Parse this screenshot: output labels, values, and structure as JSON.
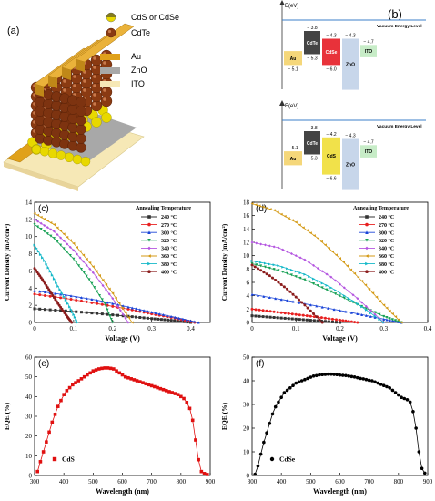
{
  "panel_a": {
    "label": "(a)",
    "legend": [
      "CdS or CdSe",
      "CdTe",
      "Au",
      "ZnO",
      "ITO"
    ],
    "colors": {
      "cds": "#e8d800",
      "cdte": "#8a3a12",
      "au": "#e0a11a",
      "zno": "#a8a8a8",
      "ito": "#f6e8b6"
    }
  },
  "panel_b": {
    "label": "(b)",
    "top": {
      "axis": "E(eV)",
      "vacuum": "Vacuum Energy Level",
      "bars": [
        {
          "name": "Au",
          "top": "",
          "bottom": "− 5.1",
          "color": "#f5d77a"
        },
        {
          "name": "CdTe",
          "top": "− 3.8",
          "bottom": "− 5.3",
          "color": "#444444"
        },
        {
          "name": "CdSe",
          "top": "− 4.3",
          "bottom": "− 6.0",
          "color": "#e8323a"
        },
        {
          "name": "ZnO",
          "top": "− 4.3",
          "bottom": "",
          "color": "#c7d6ea"
        },
        {
          "name": "ITO",
          "top": "− 4.7",
          "bottom": "",
          "color": "#c7ecc7"
        }
      ]
    },
    "bottom": {
      "axis": "E(eV)",
      "vacuum": "Vacuum Energy Level",
      "bars": [
        {
          "name": "Au",
          "top": "− 5.1",
          "bottom": "",
          "color": "#f5d77a"
        },
        {
          "name": "CdTe",
          "top": "− 3.8",
          "bottom": "− 5.3",
          "color": "#444444"
        },
        {
          "name": "CdS",
          "top": "− 4.2",
          "bottom": "− 6.6",
          "color": "#f1e14a"
        },
        {
          "name": "ZnO",
          "top": "− 4.3",
          "bottom": "− 7.6",
          "color": "#c7d6ea"
        },
        {
          "name": "ITO",
          "top": "− 4.7",
          "bottom": "",
          "color": "#c7ecc7"
        }
      ]
    }
  },
  "chart_data": [
    {
      "id": "c",
      "type": "line",
      "label": "(c)",
      "xlabel": "Voltage (V)",
      "ylabel": "Current Density (mA/cm²)",
      "xlim": [
        0,
        0.45
      ],
      "ylim": [
        0,
        14
      ],
      "xticks": [
        0,
        0.1,
        0.2,
        0.3,
        0.4
      ],
      "yticks": [
        0,
        2,
        4,
        6,
        8,
        10,
        12,
        14
      ],
      "legend_title": "Annealing Temperature",
      "legend_position": "top-right",
      "series": [
        {
          "name": "240 °C",
          "color": "#333333",
          "marker": "square",
          "x": [
            0,
            0.08,
            0.16,
            0.24,
            0.3,
            0.35,
            0.4
          ],
          "y": [
            1.6,
            1.35,
            1.05,
            0.72,
            0.45,
            0.25,
            0
          ]
        },
        {
          "name": "270 °C",
          "color": "#e82020",
          "marker": "circle",
          "x": [
            0,
            0.08,
            0.16,
            0.24,
            0.3,
            0.36,
            0.41
          ],
          "y": [
            3.3,
            2.8,
            2.2,
            1.55,
            1.0,
            0.5,
            0
          ]
        },
        {
          "name": "300 °C",
          "color": "#1a44d8",
          "marker": "triangle",
          "x": [
            0,
            0.08,
            0.16,
            0.24,
            0.3,
            0.36,
            0.42
          ],
          "y": [
            3.7,
            3.2,
            2.6,
            1.8,
            1.2,
            0.6,
            0
          ]
        },
        {
          "name": "320 °C",
          "color": "#16a054",
          "marker": "triangle-down",
          "x": [
            0,
            0.05,
            0.1,
            0.14,
            0.18,
            0.2
          ],
          "y": [
            11.4,
            9.8,
            7.4,
            5.0,
            2.2,
            0
          ]
        },
        {
          "name": "340 °C",
          "color": "#b455e0",
          "marker": "diamond",
          "x": [
            0,
            0.05,
            0.1,
            0.15,
            0.2,
            0.24
          ],
          "y": [
            12.0,
            10.6,
            8.4,
            5.8,
            2.8,
            0
          ]
        },
        {
          "name": "360 °C",
          "color": "#d49a16",
          "marker": "triangle-left",
          "x": [
            0,
            0.05,
            0.1,
            0.15,
            0.2,
            0.25
          ],
          "y": [
            12.7,
            11.4,
            9.2,
            6.5,
            3.4,
            0
          ]
        },
        {
          "name": "380 °C",
          "color": "#14b8c8",
          "marker": "triangle-right",
          "x": [
            0,
            0.03,
            0.06,
            0.09,
            0.11
          ],
          "y": [
            9.0,
            6.8,
            4.2,
            1.8,
            0
          ]
        },
        {
          "name": "400 °C",
          "color": "#8b1c1c",
          "marker": "hexagon",
          "x": [
            0,
            0.02,
            0.04,
            0.06,
            0.08,
            0.095
          ],
          "y": [
            6.3,
            5.0,
            3.6,
            2.2,
            0.9,
            0
          ]
        }
      ]
    },
    {
      "id": "d",
      "type": "line",
      "label": "(d)",
      "xlabel": "Voltage (V)",
      "ylabel": "Current Density (mA/cm²)",
      "xlim": [
        0,
        0.4
      ],
      "ylim": [
        0,
        18
      ],
      "xticks": [
        0,
        0.1,
        0.2,
        0.3,
        0.4
      ],
      "yticks": [
        0,
        2,
        4,
        6,
        8,
        10,
        12,
        14,
        16,
        18
      ],
      "legend_title": "Annealing Temperature",
      "legend_position": "top-right",
      "series": [
        {
          "name": "240 °C",
          "color": "#333333",
          "marker": "square",
          "x": [
            0,
            0.05,
            0.1,
            0.15,
            0.2
          ],
          "y": [
            1.0,
            0.75,
            0.5,
            0.25,
            0
          ]
        },
        {
          "name": "270 °C",
          "color": "#e82020",
          "marker": "circle",
          "x": [
            0,
            0.05,
            0.1,
            0.15,
            0.2,
            0.24
          ],
          "y": [
            2.0,
            1.6,
            1.2,
            0.8,
            0.35,
            0
          ]
        },
        {
          "name": "300 °C",
          "color": "#1a44d8",
          "marker": "triangle",
          "x": [
            0,
            0.08,
            0.16,
            0.24,
            0.3,
            0.34
          ],
          "y": [
            4.2,
            3.3,
            2.3,
            1.3,
            0.5,
            0
          ]
        },
        {
          "name": "320 °C",
          "color": "#16a054",
          "marker": "triangle-down",
          "x": [
            0,
            0.06,
            0.12,
            0.18,
            0.24,
            0.3,
            0.34
          ],
          "y": [
            8.8,
            7.8,
            6.4,
            4.6,
            2.7,
            0.9,
            0
          ]
        },
        {
          "name": "340 °C",
          "color": "#b455e0",
          "marker": "diamond",
          "x": [
            0,
            0.06,
            0.12,
            0.18,
            0.24,
            0.3
          ],
          "y": [
            12.0,
            11.2,
            9.4,
            6.8,
            3.6,
            0
          ]
        },
        {
          "name": "360 °C",
          "color": "#d49a16",
          "marker": "triangle-left",
          "x": [
            0,
            0.05,
            0.1,
            0.15,
            0.2,
            0.25,
            0.3,
            0.34
          ],
          "y": [
            17.8,
            16.8,
            15.0,
            12.6,
            9.6,
            6.2,
            2.6,
            0
          ]
        },
        {
          "name": "380 °C",
          "color": "#14b8c8",
          "marker": "triangle-right",
          "x": [
            0,
            0.06,
            0.12,
            0.18,
            0.24,
            0.3
          ],
          "y": [
            9.2,
            8.5,
            7.2,
            5.2,
            2.8,
            0
          ]
        },
        {
          "name": "400 °C",
          "color": "#8b1c1c",
          "marker": "hexagon",
          "x": [
            0,
            0.04,
            0.08,
            0.12,
            0.16
          ],
          "y": [
            8.6,
            7.0,
            5.0,
            2.6,
            0
          ]
        }
      ]
    },
    {
      "id": "e",
      "type": "scatter",
      "label": "(e)",
      "xlabel": "Wavelength (nm)",
      "ylabel": "EQE (%)",
      "xlim": [
        300,
        900
      ],
      "ylim": [
        0,
        60
      ],
      "xticks": [
        300,
        400,
        500,
        600,
        700,
        800,
        900
      ],
      "yticks": [
        0,
        10,
        20,
        30,
        40,
        50,
        60
      ],
      "legend_position": "bottom-left",
      "series": [
        {
          "name": "CdS",
          "color": "#e01010",
          "marker": "square",
          "x": [
            310,
            320,
            330,
            340,
            350,
            360,
            370,
            380,
            390,
            400,
            410,
            420,
            430,
            440,
            450,
            460,
            470,
            480,
            490,
            500,
            510,
            520,
            530,
            540,
            550,
            560,
            570,
            580,
            590,
            600,
            610,
            620,
            630,
            640,
            650,
            660,
            670,
            680,
            690,
            700,
            710,
            720,
            730,
            740,
            750,
            760,
            770,
            780,
            790,
            800,
            810,
            820,
            830,
            840,
            850,
            860,
            870,
            880,
            890
          ],
          "y": [
            2,
            7,
            12,
            17,
            22,
            27,
            31,
            35,
            38,
            41,
            43,
            44.5,
            46,
            47,
            48,
            49,
            50,
            51,
            52,
            53,
            53.5,
            54,
            54.3,
            54.5,
            54.5,
            54.3,
            54,
            53,
            52,
            51,
            50,
            49.5,
            49,
            48.5,
            48,
            47.5,
            47,
            46.5,
            46,
            45.5,
            45,
            44.5,
            44,
            43.5,
            43,
            42.5,
            42,
            41.5,
            41,
            40,
            39,
            37,
            34,
            28,
            18,
            8,
            2,
            1,
            0.5
          ]
        }
      ]
    },
    {
      "id": "f",
      "type": "scatter",
      "label": "(f)",
      "xlabel": "Wavelength (nm)",
      "ylabel": "EQE (%)",
      "xlim": [
        300,
        900
      ],
      "ylim": [
        0,
        50
      ],
      "xticks": [
        300,
        400,
        500,
        600,
        700,
        800,
        900
      ],
      "yticks": [
        0,
        10,
        20,
        30,
        40,
        50
      ],
      "legend_position": "bottom-left",
      "series": [
        {
          "name": "CdSe",
          "color": "#000000",
          "marker": "circle",
          "x": [
            310,
            320,
            330,
            340,
            350,
            360,
            370,
            380,
            390,
            400,
            410,
            420,
            430,
            440,
            450,
            460,
            470,
            480,
            490,
            500,
            510,
            520,
            530,
            540,
            550,
            560,
            570,
            580,
            590,
            600,
            610,
            620,
            630,
            640,
            650,
            660,
            670,
            680,
            690,
            700,
            710,
            720,
            730,
            740,
            750,
            760,
            770,
            780,
            790,
            800,
            810,
            820,
            830,
            840,
            850,
            860,
            870,
            880,
            890
          ],
          "y": [
            0.5,
            4,
            9,
            14,
            18,
            22,
            26,
            29,
            31,
            33,
            35,
            36,
            37,
            38,
            39,
            39.5,
            40,
            40.5,
            41,
            41.5,
            42,
            42.2,
            42.5,
            42.6,
            42.7,
            42.8,
            42.8,
            42.7,
            42.6,
            42.4,
            42.3,
            42.2,
            42,
            41.8,
            41.6,
            41.3,
            41,
            40.8,
            40.5,
            40.2,
            40,
            39.5,
            39,
            38.5,
            38,
            37.5,
            37,
            36,
            35,
            34,
            33,
            32.5,
            32,
            31,
            27,
            20,
            10,
            3,
            1
          ]
        }
      ]
    }
  ]
}
